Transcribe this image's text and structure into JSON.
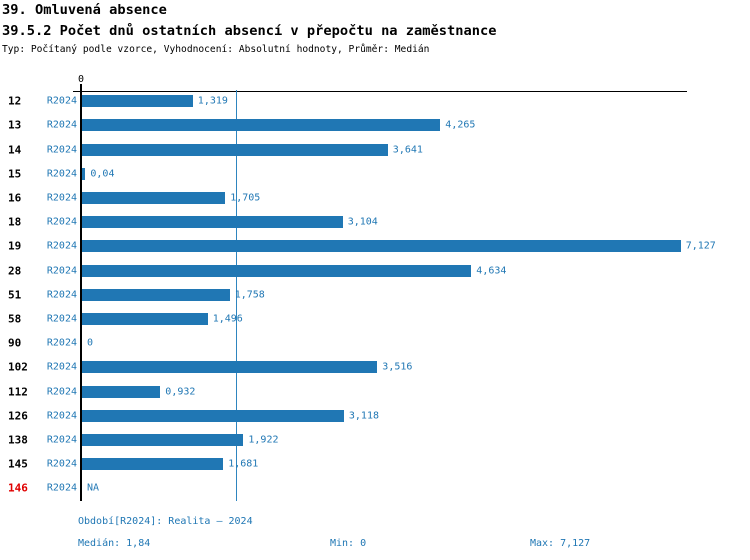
{
  "page": {
    "title": "39. Omluvená absence",
    "subtitle": "39.5.2 Počet dnů ostatních absencí v přepočtu na zaměstnance",
    "meta": "Typ: Počítaný podle vzorce, Vyhodnocení: Absolutní hodnoty, Průměr: Medián"
  },
  "colors": {
    "bar_blue": "#2077b4",
    "text_blue": "#2077b4",
    "alert_red": "#e00000",
    "axis_black": "#000000"
  },
  "chart_data": {
    "type": "bar",
    "orientation": "horizontal",
    "title": "39.5.2 Počet dnů ostatních absencí v přepočtu na zaměstnance",
    "axis": {
      "zero_label": "0",
      "min": 0,
      "max": 7.127,
      "gridlines": false
    },
    "median_value": 1.84,
    "series_name": "R2024",
    "categories": [
      "12",
      "13",
      "14",
      "15",
      "16",
      "18",
      "19",
      "28",
      "51",
      "58",
      "90",
      "102",
      "112",
      "126",
      "138",
      "145",
      "146"
    ],
    "rows": [
      {
        "id": "12",
        "series": "R2024",
        "value": 1.319,
        "label": "1,319",
        "alert": false
      },
      {
        "id": "13",
        "series": "R2024",
        "value": 4.265,
        "label": "4,265",
        "alert": false
      },
      {
        "id": "14",
        "series": "R2024",
        "value": 3.641,
        "label": "3,641",
        "alert": false
      },
      {
        "id": "15",
        "series": "R2024",
        "value": 0.04,
        "label": "0,04",
        "alert": false
      },
      {
        "id": "16",
        "series": "R2024",
        "value": 1.705,
        "label": "1,705",
        "alert": false
      },
      {
        "id": "18",
        "series": "R2024",
        "value": 3.104,
        "label": "3,104",
        "alert": false
      },
      {
        "id": "19",
        "series": "R2024",
        "value": 7.127,
        "label": "7,127",
        "alert": false
      },
      {
        "id": "28",
        "series": "R2024",
        "value": 4.634,
        "label": "4,634",
        "alert": false
      },
      {
        "id": "51",
        "series": "R2024",
        "value": 1.758,
        "label": "1,758",
        "alert": false
      },
      {
        "id": "58",
        "series": "R2024",
        "value": 1.496,
        "label": "1,496",
        "alert": false
      },
      {
        "id": "90",
        "series": "R2024",
        "value": 0,
        "label": "0",
        "alert": false
      },
      {
        "id": "102",
        "series": "R2024",
        "value": 3.516,
        "label": "3,516",
        "alert": false
      },
      {
        "id": "112",
        "series": "R2024",
        "value": 0.932,
        "label": "0,932",
        "alert": false
      },
      {
        "id": "126",
        "series": "R2024",
        "value": 3.118,
        "label": "3,118",
        "alert": false
      },
      {
        "id": "138",
        "series": "R2024",
        "value": 1.922,
        "label": "1,922",
        "alert": false
      },
      {
        "id": "145",
        "series": "R2024",
        "value": 1.681,
        "label": "1,681",
        "alert": false
      },
      {
        "id": "146",
        "series": "R2024",
        "value": null,
        "label": "NA",
        "alert": true
      }
    ]
  },
  "footer": {
    "period": "Období[R2024]: Realita – 2024",
    "median": "Medián: 1,84",
    "min": "Min: 0",
    "max": "Max: 7,127"
  }
}
